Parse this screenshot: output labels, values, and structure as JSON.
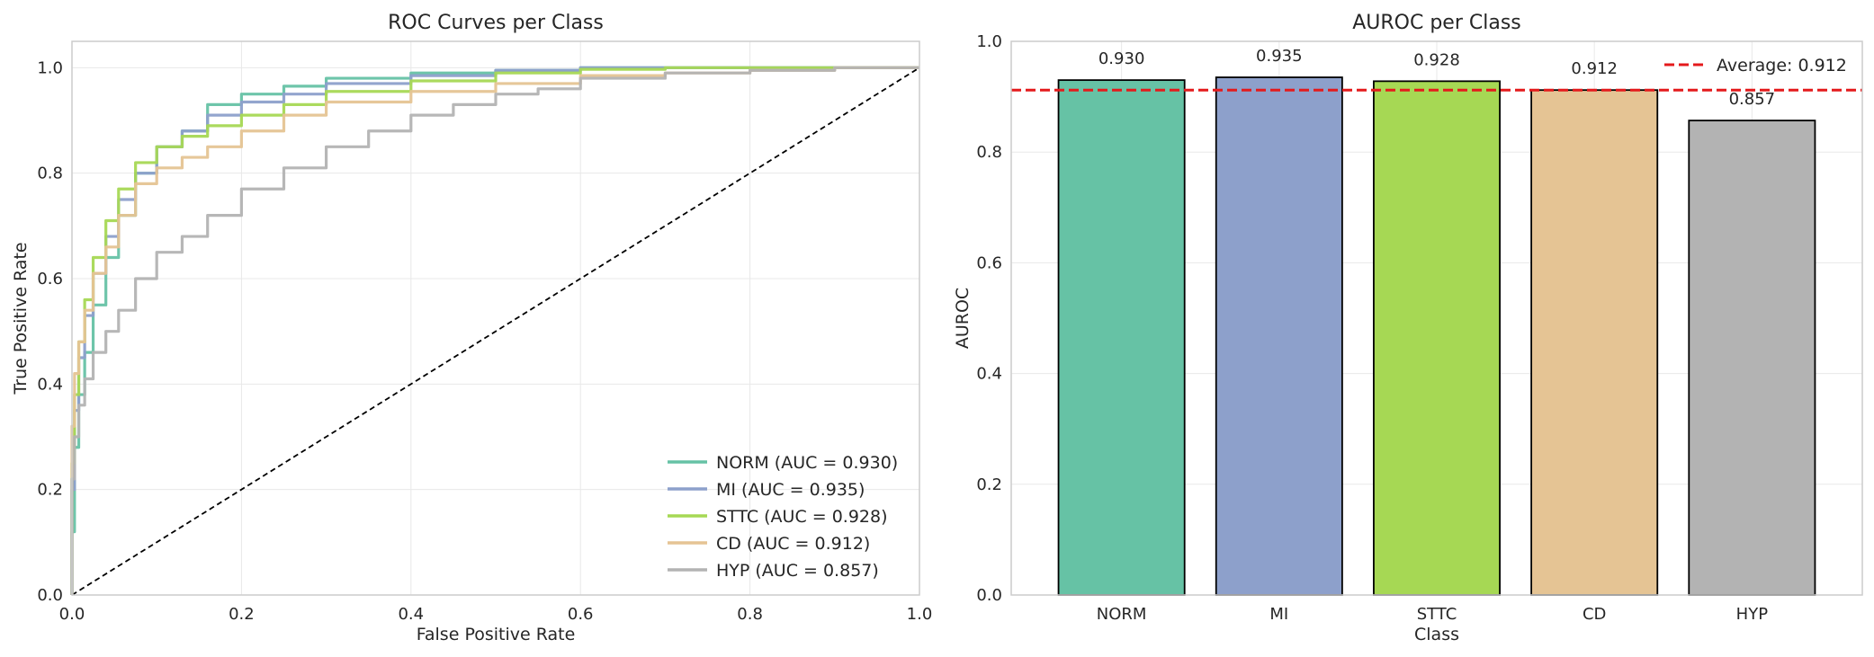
{
  "chart_data": [
    {
      "type": "line",
      "title": "ROC Curves per Class",
      "xlabel": "False Positive Rate",
      "ylabel": "True Positive Rate",
      "xlim": [
        0.0,
        1.0
      ],
      "ylim": [
        0.0,
        1.05
      ],
      "xticks": [
        "0.0",
        "0.2",
        "0.4",
        "0.6",
        "0.8",
        "1.0"
      ],
      "yticks": [
        "0.0",
        "0.2",
        "0.4",
        "0.6",
        "0.8",
        "1.0"
      ],
      "grid": true,
      "legend_position": "lower-right",
      "diagonal": {
        "x": [
          0,
          1
        ],
        "y": [
          0,
          1
        ],
        "color": "#000000",
        "style": "dashed"
      },
      "series": [
        {
          "name": "NORM (AUC = 0.930)",
          "color": "#66c2a5",
          "x": [
            0,
            0.003,
            0.008,
            0.015,
            0.025,
            0.04,
            0.055,
            0.075,
            0.1,
            0.13,
            0.16,
            0.2,
            0.25,
            0.3,
            0.4,
            0.5,
            0.6,
            0.7,
            0.8,
            1.0
          ],
          "y": [
            0,
            0.12,
            0.28,
            0.38,
            0.46,
            0.55,
            0.64,
            0.72,
            0.8,
            0.85,
            0.88,
            0.93,
            0.95,
            0.965,
            0.98,
            0.99,
            0.995,
            1.0,
            1.0,
            1.0
          ]
        },
        {
          "name": "MI (AUC = 0.935)",
          "color": "#8da0cb",
          "x": [
            0,
            0.003,
            0.008,
            0.015,
            0.025,
            0.04,
            0.055,
            0.075,
            0.1,
            0.13,
            0.16,
            0.2,
            0.25,
            0.3,
            0.4,
            0.5,
            0.6,
            0.7,
            0.8,
            1.0
          ],
          "y": [
            0,
            0.2,
            0.35,
            0.45,
            0.53,
            0.61,
            0.68,
            0.75,
            0.8,
            0.85,
            0.88,
            0.91,
            0.935,
            0.95,
            0.97,
            0.985,
            0.995,
            1.0,
            1.0,
            1.0
          ]
        },
        {
          "name": "STTC (AUC = 0.928)",
          "color": "#a6d854",
          "x": [
            0,
            0.003,
            0.008,
            0.015,
            0.025,
            0.04,
            0.055,
            0.075,
            0.1,
            0.13,
            0.16,
            0.2,
            0.25,
            0.3,
            0.4,
            0.5,
            0.6,
            0.7,
            0.8,
            1.0
          ],
          "y": [
            0,
            0.25,
            0.38,
            0.48,
            0.56,
            0.64,
            0.71,
            0.77,
            0.82,
            0.85,
            0.87,
            0.89,
            0.91,
            0.93,
            0.955,
            0.975,
            0.99,
            0.997,
            1.0,
            1.0
          ]
        },
        {
          "name": "CD (AUC = 0.912)",
          "color": "#e5c494",
          "x": [
            0,
            0.003,
            0.008,
            0.015,
            0.025,
            0.04,
            0.055,
            0.075,
            0.1,
            0.13,
            0.16,
            0.2,
            0.25,
            0.3,
            0.4,
            0.5,
            0.6,
            0.7,
            0.8,
            0.9,
            1.0
          ],
          "y": [
            0,
            0.32,
            0.42,
            0.48,
            0.54,
            0.61,
            0.66,
            0.72,
            0.78,
            0.81,
            0.83,
            0.85,
            0.88,
            0.91,
            0.935,
            0.955,
            0.97,
            0.985,
            0.99,
            0.995,
            1.0
          ]
        },
        {
          "name": "HYP (AUC = 0.857)",
          "color": "#b3b3b3",
          "x": [
            0,
            0.003,
            0.008,
            0.015,
            0.025,
            0.04,
            0.055,
            0.075,
            0.1,
            0.13,
            0.16,
            0.2,
            0.25,
            0.3,
            0.35,
            0.4,
            0.45,
            0.5,
            0.55,
            0.6,
            0.7,
            0.8,
            0.9,
            1.0
          ],
          "y": [
            0,
            0.22,
            0.3,
            0.36,
            0.41,
            0.46,
            0.5,
            0.54,
            0.6,
            0.65,
            0.68,
            0.72,
            0.77,
            0.81,
            0.85,
            0.88,
            0.91,
            0.93,
            0.95,
            0.96,
            0.98,
            0.99,
            0.995,
            1.0
          ]
        }
      ]
    },
    {
      "type": "bar",
      "title": "AUROC per Class",
      "xlabel": "Class",
      "ylabel": "AUROC",
      "ylim": [
        0.0,
        1.0
      ],
      "yticks": [
        "0.0",
        "0.2",
        "0.4",
        "0.6",
        "0.8",
        "1.0"
      ],
      "grid": true,
      "legend_position": "top-right",
      "categories": [
        "NORM",
        "MI",
        "STTC",
        "CD",
        "HYP"
      ],
      "values": [
        0.93,
        0.935,
        0.928,
        0.912,
        0.857
      ],
      "value_labels": [
        "0.930",
        "0.935",
        "0.928",
        "0.912",
        "0.857"
      ],
      "colors": [
        "#66c2a5",
        "#8da0cb",
        "#a6d854",
        "#e5c494",
        "#b3b3b3"
      ],
      "average_line": {
        "label": "Average: 0.912",
        "value": 0.912,
        "color": "#e41a1c"
      }
    }
  ]
}
